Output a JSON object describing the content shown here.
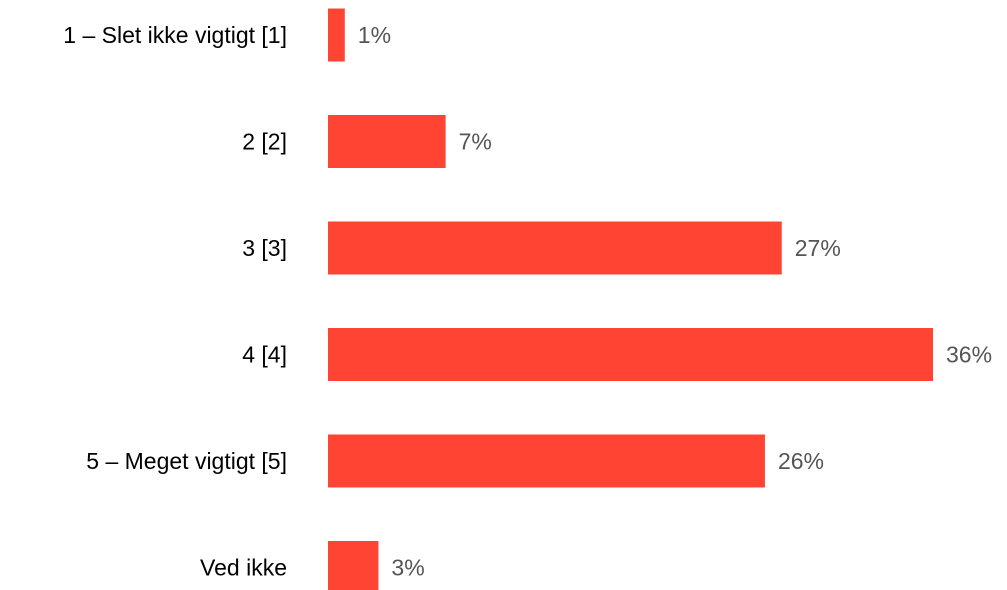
{
  "chart_data": {
    "type": "bar",
    "orientation": "horizontal",
    "categories": [
      "1 – Slet ikke vigtigt [1]",
      "2 [2]",
      "3 [3]",
      "4 [4]",
      "5 – Meget vigtigt [5]",
      "Ved ikke"
    ],
    "values": [
      1,
      7,
      27,
      36,
      26,
      3
    ],
    "value_labels": [
      "1%",
      "7%",
      "27%",
      "36%",
      "26%",
      "3%"
    ],
    "unit": "%",
    "xlim": [
      0,
      36
    ],
    "grid": false,
    "legend": "none",
    "bar_color": "#ff4433",
    "label_color": "#000000",
    "value_label_color": "#555555"
  }
}
